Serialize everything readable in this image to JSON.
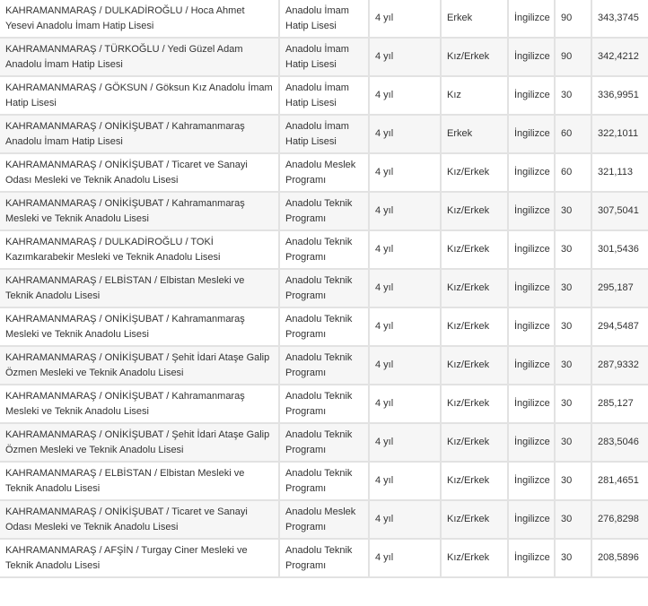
{
  "table": {
    "rows": [
      [
        "KAHRAMANMARAŞ / DULKADİROĞLU / Hoca Ahmet Yesevi Anadolu İmam Hatip Lisesi",
        "Anadolu İmam Hatip Lisesi",
        "4 yıl",
        "Erkek",
        "İngilizce",
        "90",
        "343,3745"
      ],
      [
        "KAHRAMANMARAŞ / TÜRKOĞLU / Yedi Güzel Adam Anadolu İmam Hatip Lisesi",
        "Anadolu İmam Hatip Lisesi",
        "4 yıl",
        "Kız/Erkek",
        "İngilizce",
        "90",
        "342,4212"
      ],
      [
        "KAHRAMANMARAŞ / GÖKSUN / Göksun Kız Anadolu İmam Hatip Lisesi",
        "Anadolu İmam Hatip Lisesi",
        "4 yıl",
        "Kız",
        "İngilizce",
        "30",
        "336,9951"
      ],
      [
        "KAHRAMANMARAŞ / ONİKİŞUBAT / Kahramanmaraş Anadolu İmam Hatip Lisesi",
        "Anadolu İmam Hatip Lisesi",
        "4 yıl",
        "Erkek",
        "İngilizce",
        "60",
        "322,1011"
      ],
      [
        "KAHRAMANMARAŞ / ONİKİŞUBAT / Ticaret ve Sanayi Odası Mesleki ve Teknik Anadolu Lisesi",
        "Anadolu Meslek Programı",
        "4 yıl",
        "Kız/Erkek",
        "İngilizce",
        "60",
        "321,113"
      ],
      [
        "KAHRAMANMARAŞ / ONİKİŞUBAT / Kahramanmaraş Mesleki ve Teknik Anadolu Lisesi",
        "Anadolu Teknik Programı",
        "4 yıl",
        "Kız/Erkek",
        "İngilizce",
        "30",
        "307,5041"
      ],
      [
        "KAHRAMANMARAŞ / DULKADİROĞLU / TOKİ Kazımkarabekir Mesleki ve Teknik Anadolu Lisesi",
        "Anadolu Teknik Programı",
        "4 yıl",
        "Kız/Erkek",
        "İngilizce",
        "30",
        "301,5436"
      ],
      [
        "KAHRAMANMARAŞ / ELBİSTAN / Elbistan Mesleki ve Teknik Anadolu Lisesi",
        "Anadolu Teknik Programı",
        "4 yıl",
        "Kız/Erkek",
        "İngilizce",
        "30",
        "295,187"
      ],
      [
        "KAHRAMANMARAŞ / ONİKİŞUBAT / Kahramanmaraş Mesleki ve Teknik Anadolu Lisesi",
        "Anadolu Teknik Programı",
        "4 yıl",
        "Kız/Erkek",
        "İngilizce",
        "30",
        "294,5487"
      ],
      [
        "KAHRAMANMARAŞ / ONİKİŞUBAT / Şehit İdari Ataşe Galip Özmen Mesleki ve Teknik Anadolu Lisesi",
        "Anadolu Teknik Programı",
        "4 yıl",
        "Kız/Erkek",
        "İngilizce",
        "30",
        "287,9332"
      ],
      [
        "KAHRAMANMARAŞ / ONİKİŞUBAT / Kahramanmaraş Mesleki ve Teknik Anadolu Lisesi",
        "Anadolu Teknik Programı",
        "4 yıl",
        "Kız/Erkek",
        "İngilizce",
        "30",
        "285,127"
      ],
      [
        "KAHRAMANMARAŞ / ONİKİŞUBAT / Şehit İdari Ataşe Galip Özmen Mesleki ve Teknik Anadolu Lisesi",
        "Anadolu Teknik Programı",
        "4 yıl",
        "Kız/Erkek",
        "İngilizce",
        "30",
        "283,5046"
      ],
      [
        "KAHRAMANMARAŞ / ELBİSTAN / Elbistan Mesleki ve Teknik Anadolu Lisesi",
        "Anadolu Teknik Programı",
        "4 yıl",
        "Kız/Erkek",
        "İngilizce",
        "30",
        "281,4651"
      ],
      [
        "KAHRAMANMARAŞ / ONİKİŞUBAT / Ticaret ve Sanayi Odası Mesleki ve Teknik Anadolu Lisesi",
        "Anadolu Meslek Programı",
        "4 yıl",
        "Kız/Erkek",
        "İngilizce",
        "30",
        "276,8298"
      ],
      [
        "KAHRAMANMARAŞ / AFŞİN / Turgay Ciner Mesleki ve Teknik Anadolu Lisesi",
        "Anadolu Teknik Programı",
        "4 yıl",
        "Kız/Erkek",
        "İngilizce",
        "30",
        "208,5896"
      ]
    ]
  }
}
